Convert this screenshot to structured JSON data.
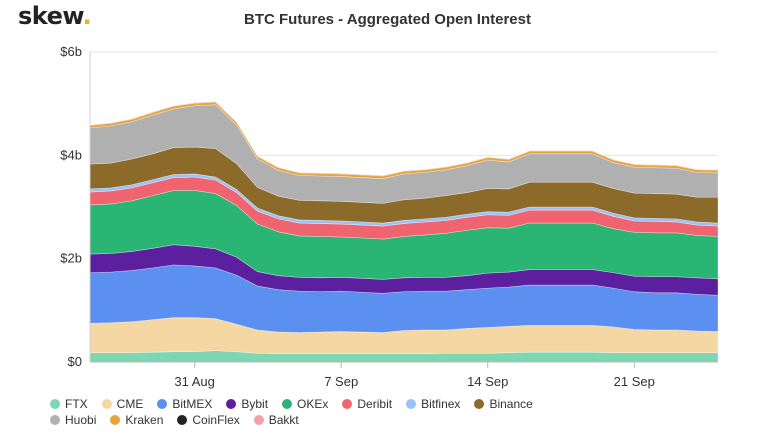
{
  "brand": {
    "name": "skew",
    "dot": "."
  },
  "chart_data": {
    "type": "area",
    "stacked": true,
    "title": "BTC Futures - Aggregated Open Interest",
    "xlabel": "",
    "ylabel": "",
    "ylim": [
      0,
      6
    ],
    "y_ticks": [
      0,
      2,
      4,
      6
    ],
    "y_tick_labels": [
      "$0",
      "$2b",
      "$4b",
      "$6b"
    ],
    "x_ticks": [
      {
        "day": 31,
        "month": "Aug",
        "label": "31 Aug"
      },
      {
        "day": 7,
        "month": "Sep",
        "label": "7 Sep"
      },
      {
        "day": 14,
        "month": "Sep",
        "label": "14 Sep"
      },
      {
        "day": 21,
        "month": "Sep",
        "label": "21 Sep"
      }
    ],
    "x": [
      "2020-08-26",
      "2020-08-27",
      "2020-08-28",
      "2020-08-29",
      "2020-08-30",
      "2020-08-31",
      "2020-09-01",
      "2020-09-02",
      "2020-09-03",
      "2020-09-04",
      "2020-09-05",
      "2020-09-06",
      "2020-09-07",
      "2020-09-08",
      "2020-09-09",
      "2020-09-10",
      "2020-09-11",
      "2020-09-12",
      "2020-09-13",
      "2020-09-14",
      "2020-09-15",
      "2020-09-16",
      "2020-09-17",
      "2020-09-18",
      "2020-09-19",
      "2020-09-20",
      "2020-09-21",
      "2020-09-22",
      "2020-09-23",
      "2020-09-24",
      "2020-09-25"
    ],
    "unit": "USD billions",
    "grid": true,
    "legend_position": "bottom",
    "series": [
      {
        "name": "FTX",
        "color": "#7fd6b3",
        "values": [
          0.18,
          0.18,
          0.18,
          0.19,
          0.2,
          0.2,
          0.22,
          0.2,
          0.17,
          0.16,
          0.16,
          0.16,
          0.16,
          0.16,
          0.16,
          0.16,
          0.16,
          0.17,
          0.17,
          0.17,
          0.18,
          0.19,
          0.19,
          0.19,
          0.19,
          0.18,
          0.18,
          0.18,
          0.18,
          0.18,
          0.18
        ]
      },
      {
        "name": "CME",
        "color": "#f5d7a3",
        "values": [
          0.57,
          0.58,
          0.6,
          0.63,
          0.66,
          0.66,
          0.62,
          0.53,
          0.45,
          0.42,
          0.41,
          0.42,
          0.43,
          0.42,
          0.41,
          0.45,
          0.46,
          0.45,
          0.48,
          0.5,
          0.51,
          0.52,
          0.52,
          0.52,
          0.52,
          0.5,
          0.45,
          0.44,
          0.44,
          0.42,
          0.41
        ]
      },
      {
        "name": "BitMEX",
        "color": "#5b8ff0",
        "values": [
          0.98,
          0.98,
          0.99,
          1.0,
          1.02,
          1.0,
          0.98,
          0.95,
          0.85,
          0.82,
          0.8,
          0.78,
          0.78,
          0.77,
          0.76,
          0.75,
          0.75,
          0.75,
          0.75,
          0.76,
          0.76,
          0.78,
          0.78,
          0.78,
          0.78,
          0.75,
          0.73,
          0.72,
          0.72,
          0.71,
          0.7
        ]
      },
      {
        "name": "Bybit",
        "color": "#5b1fa0",
        "values": [
          0.36,
          0.36,
          0.37,
          0.38,
          0.39,
          0.38,
          0.37,
          0.35,
          0.28,
          0.27,
          0.27,
          0.27,
          0.27,
          0.27,
          0.27,
          0.27,
          0.27,
          0.27,
          0.27,
          0.29,
          0.29,
          0.3,
          0.3,
          0.3,
          0.3,
          0.3,
          0.3,
          0.31,
          0.31,
          0.32,
          0.32
        ]
      },
      {
        "name": "OKEx",
        "color": "#2bb574",
        "values": [
          0.95,
          0.96,
          0.98,
          1.02,
          1.05,
          1.08,
          1.07,
          1.0,
          0.92,
          0.85,
          0.8,
          0.8,
          0.78,
          0.78,
          0.78,
          0.8,
          0.82,
          0.85,
          0.88,
          0.88,
          0.85,
          0.9,
          0.9,
          0.9,
          0.9,
          0.85,
          0.85,
          0.85,
          0.85,
          0.82,
          0.82
        ]
      },
      {
        "name": "Deribit",
        "color": "#f06470",
        "values": [
          0.25,
          0.25,
          0.25,
          0.25,
          0.25,
          0.26,
          0.26,
          0.25,
          0.25,
          0.25,
          0.25,
          0.25,
          0.25,
          0.25,
          0.25,
          0.25,
          0.25,
          0.25,
          0.25,
          0.25,
          0.25,
          0.25,
          0.25,
          0.25,
          0.25,
          0.24,
          0.22,
          0.22,
          0.21,
          0.2,
          0.2
        ]
      },
      {
        "name": "Bitfinex",
        "color": "#9cc1f7",
        "values": [
          0.06,
          0.06,
          0.06,
          0.06,
          0.06,
          0.06,
          0.06,
          0.06,
          0.06,
          0.06,
          0.06,
          0.06,
          0.06,
          0.06,
          0.06,
          0.06,
          0.06,
          0.06,
          0.06,
          0.06,
          0.06,
          0.06,
          0.06,
          0.06,
          0.06,
          0.06,
          0.06,
          0.06,
          0.06,
          0.06,
          0.06
        ]
      },
      {
        "name": "Binance",
        "color": "#8b6a2a",
        "values": [
          0.48,
          0.48,
          0.5,
          0.5,
          0.52,
          0.52,
          0.55,
          0.5,
          0.4,
          0.38,
          0.38,
          0.38,
          0.38,
          0.38,
          0.38,
          0.4,
          0.4,
          0.42,
          0.42,
          0.45,
          0.45,
          0.48,
          0.48,
          0.48,
          0.48,
          0.48,
          0.48,
          0.48,
          0.48,
          0.48,
          0.5
        ]
      },
      {
        "name": "Huobi",
        "color": "#b0b0b0",
        "values": [
          0.7,
          0.72,
          0.72,
          0.75,
          0.75,
          0.8,
          0.85,
          0.75,
          0.55,
          0.5,
          0.48,
          0.48,
          0.48,
          0.48,
          0.48,
          0.5,
          0.5,
          0.5,
          0.52,
          0.55,
          0.52,
          0.55,
          0.55,
          0.55,
          0.55,
          0.5,
          0.5,
          0.5,
          0.5,
          0.48,
          0.47
        ]
      },
      {
        "name": "Kraken",
        "color": "#e8a43a",
        "values": [
          0.05,
          0.05,
          0.05,
          0.05,
          0.05,
          0.05,
          0.05,
          0.05,
          0.05,
          0.05,
          0.05,
          0.05,
          0.05,
          0.05,
          0.05,
          0.05,
          0.05,
          0.05,
          0.05,
          0.05,
          0.05,
          0.05,
          0.05,
          0.05,
          0.05,
          0.05,
          0.05,
          0.05,
          0.05,
          0.05,
          0.05
        ]
      },
      {
        "name": "CoinFlex",
        "color": "#222222",
        "values": [
          0.005,
          0.005,
          0.005,
          0.005,
          0.005,
          0.005,
          0.005,
          0.005,
          0.005,
          0.005,
          0.005,
          0.005,
          0.005,
          0.005,
          0.005,
          0.005,
          0.005,
          0.005,
          0.005,
          0.005,
          0.005,
          0.005,
          0.005,
          0.005,
          0.005,
          0.005,
          0.005,
          0.005,
          0.005,
          0.005,
          0.005
        ]
      },
      {
        "name": "Bakkt",
        "color": "#f4a0a8",
        "values": [
          0.005,
          0.005,
          0.005,
          0.005,
          0.005,
          0.005,
          0.005,
          0.005,
          0.005,
          0.005,
          0.005,
          0.005,
          0.005,
          0.005,
          0.005,
          0.005,
          0.005,
          0.005,
          0.005,
          0.005,
          0.005,
          0.005,
          0.005,
          0.005,
          0.005,
          0.005,
          0.005,
          0.005,
          0.005,
          0.005,
          0.005
        ]
      }
    ]
  }
}
